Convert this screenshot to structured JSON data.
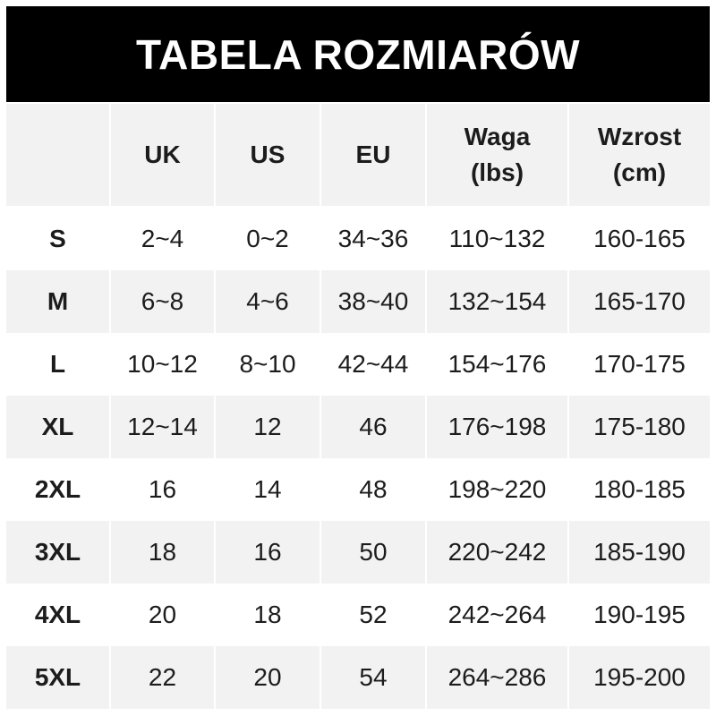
{
  "title": "TABELA ROZMIARÓW",
  "colors": {
    "title_bg": "#000000",
    "title_text": "#ffffff",
    "row_gray": "#f2f2f2",
    "row_white": "#ffffff"
  },
  "headers": [
    "",
    "UK",
    "US",
    "EU",
    "Waga\n(lbs)",
    "Wzrost\n(cm)"
  ],
  "rows": [
    [
      "S",
      "2~4",
      "0~2",
      "34~36",
      "110~132",
      "160-165"
    ],
    [
      "M",
      "6~8",
      "4~6",
      "38~40",
      "132~154",
      "165-170"
    ],
    [
      "L",
      "10~12",
      "8~10",
      "42~44",
      "154~176",
      "170-175"
    ],
    [
      "XL",
      "12~14",
      "12",
      "46",
      "176~198",
      "175-180"
    ],
    [
      "2XL",
      "16",
      "14",
      "48",
      "198~220",
      "180-185"
    ],
    [
      "3XL",
      "18",
      "16",
      "50",
      "220~242",
      "185-190"
    ],
    [
      "4XL",
      "20",
      "18",
      "52",
      "242~264",
      "190-195"
    ],
    [
      "5XL",
      "22",
      "20",
      "54",
      "264~286",
      "195-200"
    ]
  ]
}
